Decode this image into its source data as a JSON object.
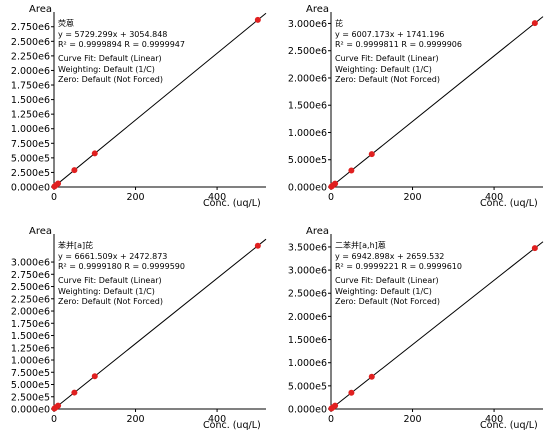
{
  "chart_data": [
    {
      "type": "scatter",
      "compound": "荧蒽",
      "equation": "y = 5729.299x + 3054.848",
      "r2_text": "R² = 0.9999894    R = 0.9999947",
      "fit_lines": [
        "Curve Fit: Default (Linear)",
        "Weighting: Default (1/C)",
        "Zero: Default (Not Forced)"
      ],
      "ylabel": "Area",
      "xlabel": "Conc. (uq/L)",
      "slope": 5729.299,
      "intercept": 3054.848,
      "xlim": [
        0,
        520
      ],
      "ylim": [
        0,
        2900000
      ],
      "yticks": [
        0,
        250000,
        500000,
        750000,
        1000000,
        1250000,
        1500000,
        1750000,
        2000000,
        2250000,
        2500000,
        2750000
      ],
      "ytick_labels": [
        "0.000e0",
        "2.500e5",
        "5.000e5",
        "7.500e5",
        "1.000e6",
        "1.250e6",
        "1.500e6",
        "1.750e6",
        "2.000e6",
        "2.250e6",
        "2.500e6",
        "2.750e6"
      ],
      "xticks": [
        0,
        200,
        400
      ],
      "xtick_labels": [
        "0",
        "200",
        "400"
      ],
      "points": [
        [
          1,
          8784
        ],
        [
          5,
          31701
        ],
        [
          10,
          60348
        ],
        [
          50,
          289520
        ],
        [
          100,
          575985
        ],
        [
          500,
          2867704
        ]
      ],
      "point_color": "#e02020"
    },
    {
      "type": "scatter",
      "compound": "芘",
      "equation": "y = 6007.173x + 1741.196",
      "r2_text": "R² = 0.9999811    R = 0.9999906",
      "fit_lines": [
        "Curve Fit: Default (Linear)",
        "Weighting: Default (1/C)",
        "Zero: Default (Not Forced)"
      ],
      "ylabel": "Area",
      "xlabel": "Conc. (uq/L)",
      "slope": 6007.173,
      "intercept": 1741.196,
      "xlim": [
        0,
        520
      ],
      "ylim": [
        0,
        3100000
      ],
      "yticks": [
        0,
        500000,
        1000000,
        1500000,
        2000000,
        2500000,
        3000000
      ],
      "ytick_labels": [
        "0.000e0",
        "5.000e5",
        "1.000e6",
        "1.500e6",
        "2.000e6",
        "2.500e6",
        "3.000e6"
      ],
      "xticks": [
        0,
        200,
        400
      ],
      "xtick_labels": [
        "0",
        "200",
        "400"
      ],
      "points": [
        [
          1,
          7748
        ],
        [
          5,
          31777
        ],
        [
          10,
          61813
        ],
        [
          50,
          302100
        ],
        [
          100,
          602459
        ],
        [
          500,
          3005328
        ]
      ],
      "point_color": "#e02020"
    },
    {
      "type": "scatter",
      "compound": "苯并[a]芘",
      "equation": "y = 6661.509x + 2472.873",
      "r2_text": "R² = 0.9999180    R = 0.9999590",
      "fit_lines": [
        "Curve Fit: Default (Linear)",
        "Weighting: Default (1/C)",
        "Zero: Default (Not Forced)"
      ],
      "ylabel": "Area",
      "xlabel": "Conc. (uq/L)",
      "slope": 6661.509,
      "intercept": 2472.873,
      "xlim": [
        0,
        520
      ],
      "ylim": [
        0,
        3450000
      ],
      "yticks": [
        0,
        250000,
        500000,
        750000,
        1000000,
        1250000,
        1500000,
        1750000,
        2000000,
        2250000,
        2500000,
        2750000,
        3000000
      ],
      "ytick_labels": [
        "0.000e0",
        "2.500e5",
        "5.000e5",
        "7.500e5",
        "1.000e6",
        "1.250e6",
        "1.500e6",
        "1.750e6",
        "2.000e6",
        "2.250e6",
        "2.500e6",
        "2.750e6",
        "3.000e6"
      ],
      "xticks": [
        0,
        200,
        400
      ],
      "xtick_labels": [
        "0",
        "200",
        "400"
      ],
      "points": [
        [
          1,
          9134
        ],
        [
          5,
          35780
        ],
        [
          10,
          69088
        ],
        [
          50,
          335548
        ],
        [
          100,
          668624
        ],
        [
          500,
          3333227
        ]
      ],
      "point_color": "#e02020"
    },
    {
      "type": "scatter",
      "compound": "二苯并[a,h]蒽",
      "equation": "y = 6942.898x + 2659.532",
      "r2_text": "R² = 0.9999221    R = 0.9999610",
      "fit_lines": [
        "Curve Fit: Default (Linear)",
        "Weighting: Default (1/C)",
        "Zero: Default (Not Forced)"
      ],
      "ylabel": "Area",
      "xlabel": "Conc. (uq/L)",
      "slope": 6942.898,
      "intercept": 2659.532,
      "xlim": [
        0,
        520
      ],
      "ylim": [
        0,
        3650000
      ],
      "yticks": [
        0,
        500000,
        1000000,
        1500000,
        2000000,
        2500000,
        3000000,
        3500000
      ],
      "ytick_labels": [
        "0.000e0",
        "5.000e5",
        "1.000e6",
        "1.500e6",
        "2.000e6",
        "2.500e6",
        "3.000e6",
        "3.500e6"
      ],
      "xticks": [
        0,
        200,
        400
      ],
      "xtick_labels": [
        "0",
        "200",
        "400"
      ],
      "points": [
        [
          1,
          9602
        ],
        [
          5,
          37374
        ],
        [
          10,
          72088
        ],
        [
          50,
          349804
        ],
        [
          100,
          696949
        ],
        [
          500,
          3474108
        ]
      ],
      "point_color": "#e02020"
    }
  ]
}
